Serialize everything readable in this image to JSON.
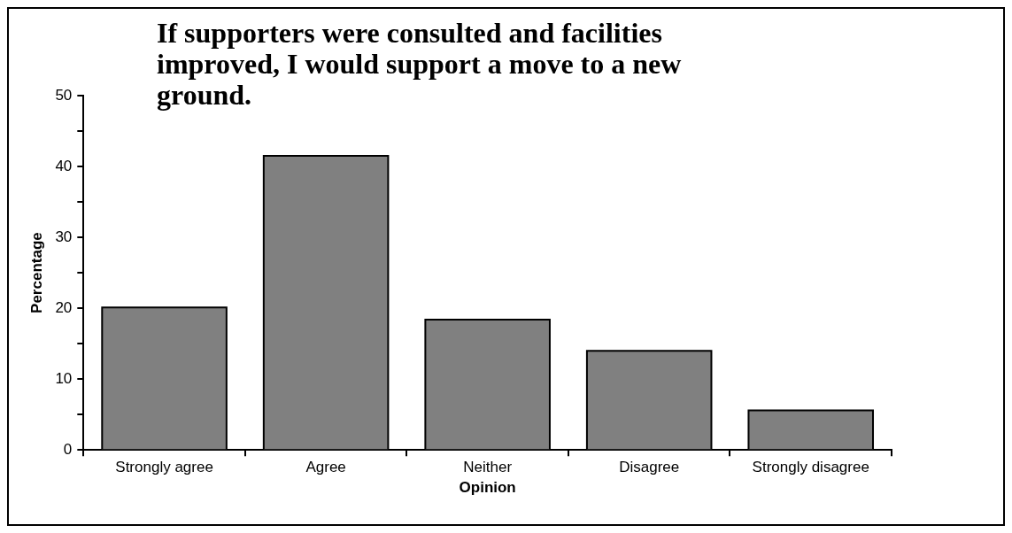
{
  "chart_data": {
    "type": "bar",
    "title": "If supporters were consulted and facilities improved, I would support a move to a new ground.",
    "xlabel": "Opinion",
    "ylabel": "Percentage",
    "categories": [
      "Strongly agree",
      "Agree",
      "Neither",
      "Disagree",
      "Strongly disagree"
    ],
    "values": [
      20.1,
      41.5,
      18.4,
      14.0,
      5.6
    ],
    "color": "#808080",
    "ylim": [
      0,
      50
    ],
    "yticks": [
      0,
      {
        "value": 5,
        "label": null
      },
      10,
      {
        "value": 15,
        "label": null
      },
      20,
      {
        "value": 25,
        "label": null
      },
      30,
      {
        "value": 35,
        "label": null
      },
      40,
      {
        "value": 45,
        "label": null
      },
      50
    ],
    "grid": false,
    "legend": false
  }
}
